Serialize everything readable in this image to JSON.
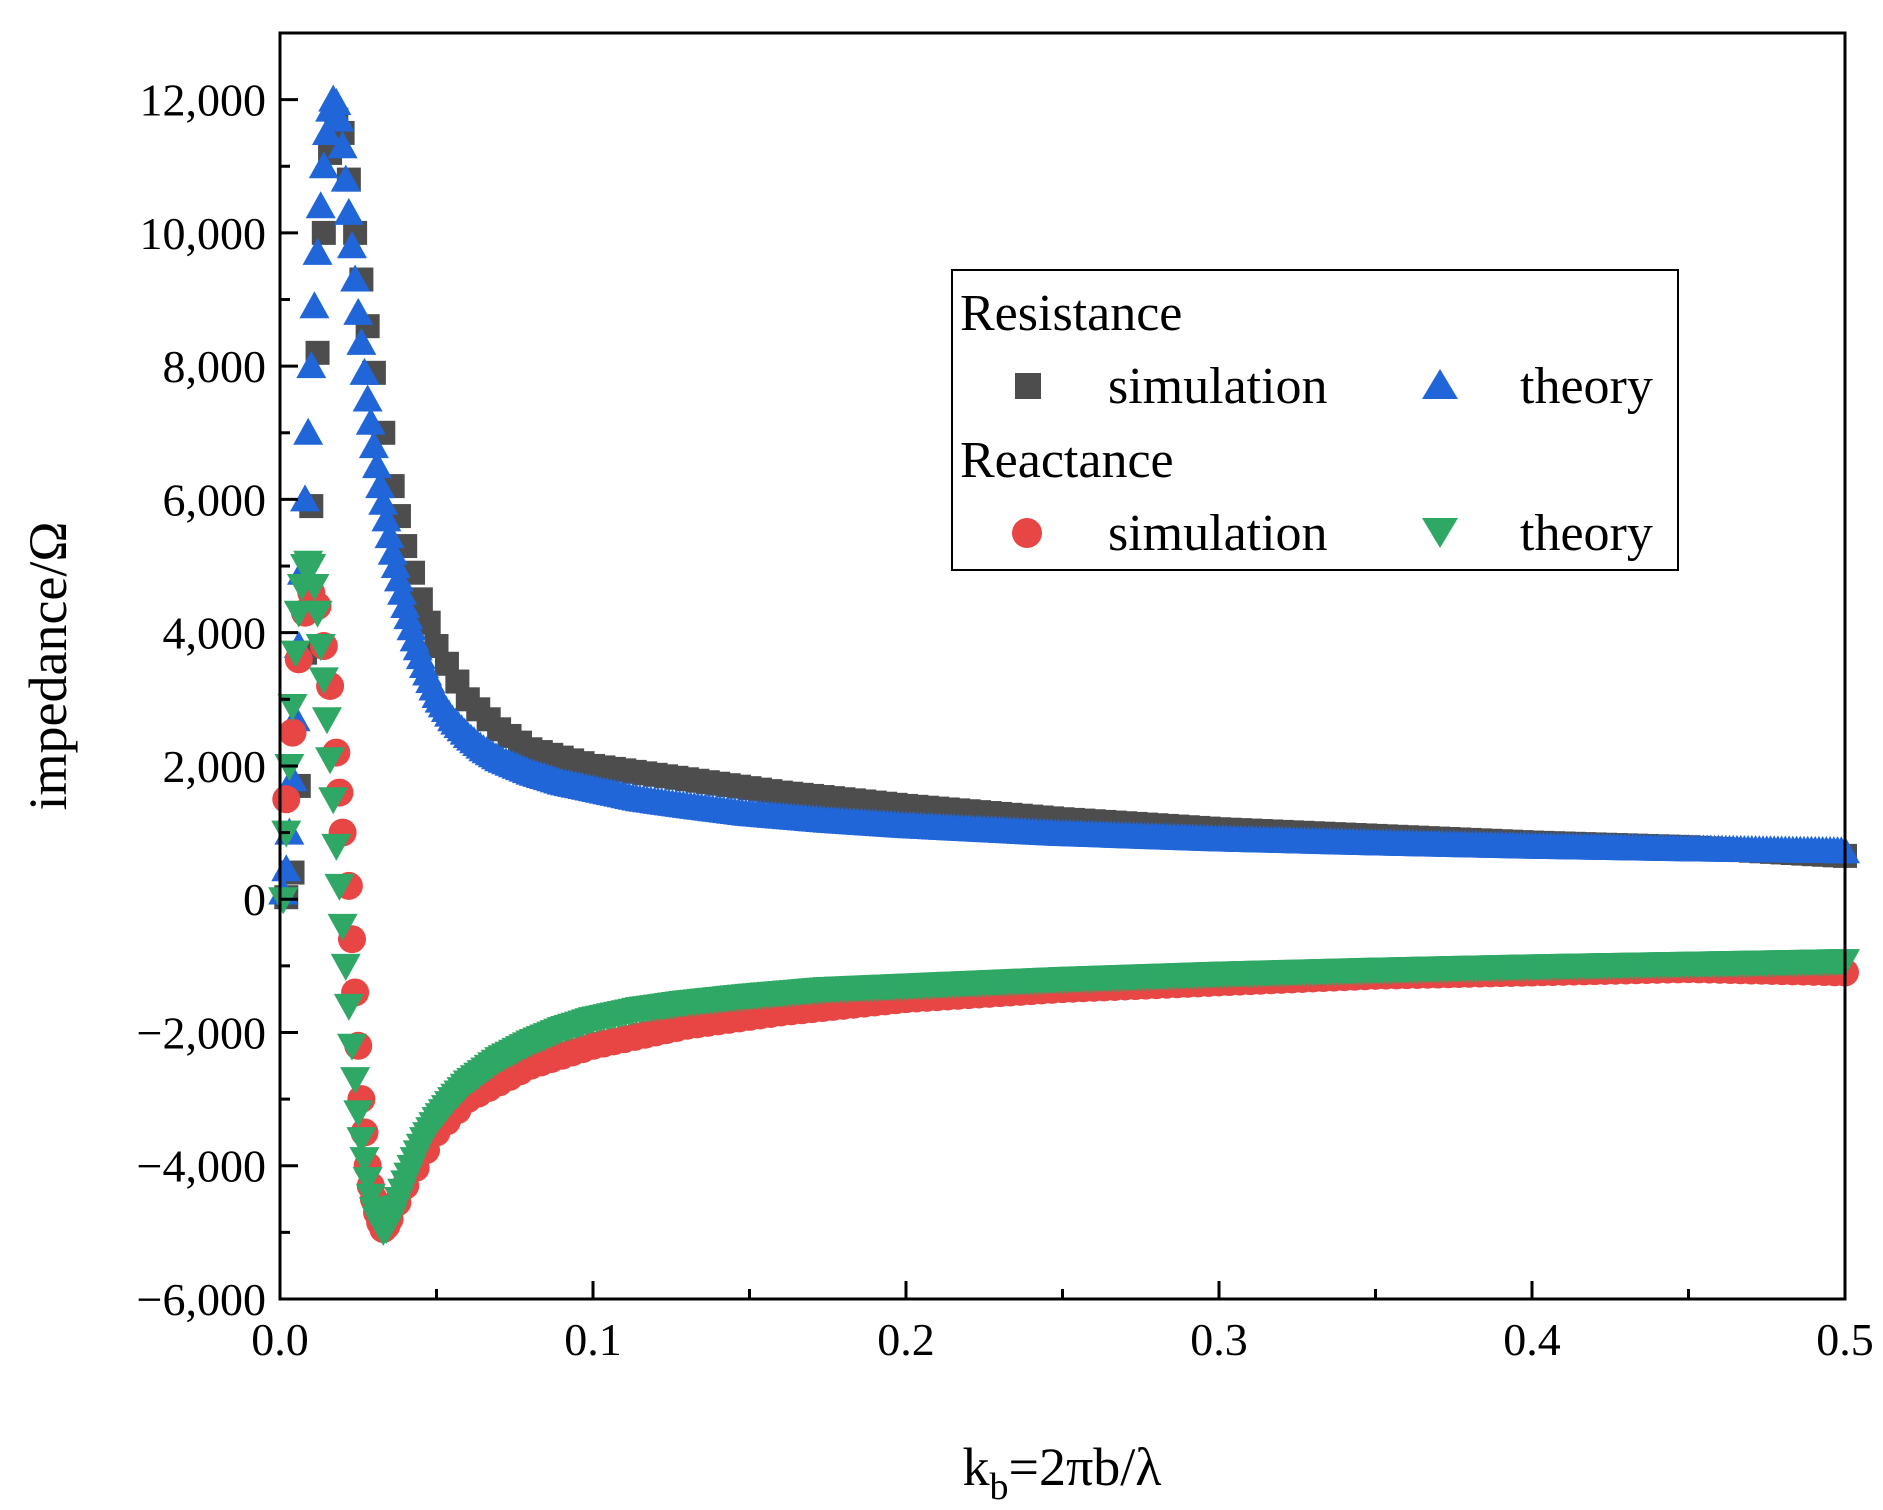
{
  "chart_data": {
    "type": "scatter",
    "title": "",
    "xlabel": {
      "base": "k",
      "subscript": "b",
      "rest": "=2πb/λ"
    },
    "ylabel": "impedance/Ω",
    "xlim": [
      0,
      0.5
    ],
    "ylim": [
      -6000,
      13000
    ],
    "x_ticks": [
      0.0,
      0.1,
      0.2,
      0.3,
      0.4,
      0.5
    ],
    "x_tick_labels": [
      "0.0",
      "0.1",
      "0.2",
      "0.3",
      "0.4",
      "0.5"
    ],
    "y_ticks": [
      -6000,
      -4000,
      -2000,
      0,
      2000,
      4000,
      6000,
      8000,
      10000,
      12000
    ],
    "y_tick_labels": [
      "−6,000",
      "−4,000",
      "−2,000",
      "0",
      "2,000",
      "4,000",
      "6,000",
      "8,000",
      "10,000",
      "12,000"
    ],
    "legend": {
      "position": "upper-right",
      "group1_title": "Resistance",
      "group2_title": "Reactance",
      "entries": [
        {
          "series": "resistance_simulation",
          "label": "simulation"
        },
        {
          "series": "resistance_theory",
          "label": "theory"
        },
        {
          "series": "reactance_simulation",
          "label": "simulation"
        },
        {
          "series": "reactance_theory",
          "label": "theory"
        }
      ]
    },
    "series": [
      {
        "name": "Resistance simulation",
        "key": "resistance_simulation",
        "marker": "square",
        "color": "#4d4d4d",
        "x": [
          0.002,
          0.004,
          0.006,
          0.008,
          0.01,
          0.012,
          0.014,
          0.016,
          0.018,
          0.02,
          0.022,
          0.024,
          0.026,
          0.028,
          0.03,
          0.033,
          0.036,
          0.04,
          0.045,
          0.05,
          0.06,
          0.07,
          0.08,
          0.1,
          0.13,
          0.16,
          0.2,
          0.25,
          0.3,
          0.35,
          0.4,
          0.45,
          0.5
        ],
        "y": [
          30,
          400,
          1700,
          3700,
          5900,
          8200,
          10000,
          11200,
          11700,
          11500,
          10800,
          10000,
          9300,
          8600,
          7900,
          7000,
          6200,
          5300,
          4500,
          3800,
          3000,
          2550,
          2250,
          2000,
          1800,
          1600,
          1400,
          1200,
          1050,
          950,
          850,
          780,
          650
        ]
      },
      {
        "name": "Resistance theory",
        "key": "resistance_theory",
        "marker": "triangle-up",
        "color": "#2166d9",
        "x": [
          0.001,
          0.002,
          0.003,
          0.004,
          0.005,
          0.006,
          0.007,
          0.008,
          0.009,
          0.01,
          0.011,
          0.012,
          0.013,
          0.014,
          0.015,
          0.016,
          0.017,
          0.018,
          0.019,
          0.02,
          0.021,
          0.022,
          0.023,
          0.024,
          0.025,
          0.026,
          0.027,
          0.028,
          0.03,
          0.032,
          0.034,
          0.036,
          0.038,
          0.04,
          0.043,
          0.046,
          0.05,
          0.055,
          0.06,
          0.065,
          0.07,
          0.08,
          0.09,
          0.1,
          0.115,
          0.13,
          0.15,
          0.175,
          0.2,
          0.225,
          0.25,
          0.3,
          0.35,
          0.4,
          0.45,
          0.5
        ],
        "y": [
          100,
          450,
          1000,
          1800,
          2700,
          3800,
          4900,
          6000,
          7000,
          8000,
          8900,
          9700,
          10400,
          11000,
          11500,
          11850,
          12000,
          11950,
          11700,
          11300,
          10800,
          10300,
          9800,
          9300,
          8800,
          8350,
          7900,
          7500,
          6800,
          6200,
          5700,
          5200,
          4800,
          4400,
          3900,
          3500,
          3050,
          2700,
          2450,
          2250,
          2100,
          1900,
          1750,
          1650,
          1500,
          1400,
          1280,
          1180,
          1100,
          1040,
          980,
          900,
          840,
          790,
          750,
          720
        ]
      },
      {
        "name": "Reactance simulation",
        "key": "reactance_simulation",
        "marker": "circle",
        "color": "#e84545",
        "x": [
          0.002,
          0.004,
          0.006,
          0.008,
          0.01,
          0.012,
          0.014,
          0.016,
          0.018,
          0.019,
          0.02,
          0.022,
          0.023,
          0.024,
          0.025,
          0.026,
          0.027,
          0.028,
          0.029,
          0.03,
          0.031,
          0.032,
          0.033,
          0.034,
          0.035,
          0.04,
          0.05,
          0.06,
          0.08,
          0.1,
          0.13,
          0.16,
          0.2,
          0.25,
          0.3,
          0.35,
          0.4,
          0.45,
          0.5
        ],
        "y": [
          1500,
          2500,
          3600,
          4300,
          4600,
          4400,
          3800,
          3200,
          2200,
          1600,
          1000,
          200,
          -600,
          -1400,
          -2200,
          -3000,
          -3500,
          -4000,
          -4300,
          -4500,
          -4700,
          -4850,
          -4950,
          -4900,
          -4800,
          -4300,
          -3500,
          -3000,
          -2500,
          -2200,
          -1900,
          -1700,
          -1500,
          -1350,
          -1250,
          -1150,
          -1100,
          -1050,
          -1100
        ]
      },
      {
        "name": "Reactance theory",
        "key": "reactance_theory",
        "marker": "triangle-down",
        "color": "#2fa866",
        "x": [
          0.001,
          0.002,
          0.003,
          0.004,
          0.005,
          0.006,
          0.007,
          0.008,
          0.009,
          0.01,
          0.011,
          0.012,
          0.013,
          0.014,
          0.015,
          0.016,
          0.017,
          0.018,
          0.019,
          0.02,
          0.021,
          0.022,
          0.023,
          0.024,
          0.025,
          0.026,
          0.027,
          0.028,
          0.029,
          0.03,
          0.031,
          0.032,
          0.033,
          0.034,
          0.036,
          0.038,
          0.04,
          0.043,
          0.046,
          0.05,
          0.055,
          0.06,
          0.07,
          0.08,
          0.09,
          0.1,
          0.115,
          0.13,
          0.15,
          0.175,
          0.2,
          0.25,
          0.3,
          0.35,
          0.4,
          0.45,
          0.5
        ],
        "y": [
          0,
          1000,
          2000,
          2900,
          3700,
          4300,
          4700,
          5000,
          5050,
          5000,
          4700,
          4300,
          3800,
          3300,
          2700,
          2100,
          1500,
          800,
          200,
          -400,
          -1000,
          -1600,
          -2200,
          -2700,
          -3200,
          -3600,
          -3900,
          -4200,
          -4450,
          -4650,
          -4800,
          -4900,
          -4980,
          -4950,
          -4750,
          -4500,
          -4250,
          -3900,
          -3600,
          -3300,
          -3000,
          -2750,
          -2400,
          -2150,
          -1950,
          -1800,
          -1650,
          -1550,
          -1450,
          -1350,
          -1300,
          -1200,
          -1120,
          -1060,
          -1010,
          -970,
          -930
        ]
      }
    ]
  }
}
